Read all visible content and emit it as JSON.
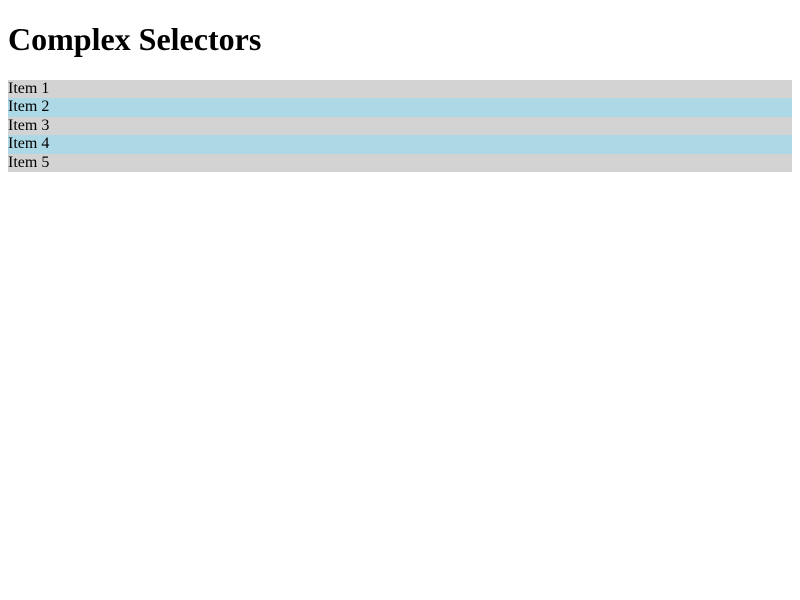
{
  "page": {
    "title": "Complex Selectors"
  },
  "list": {
    "items": [
      {
        "label": "Item 1"
      },
      {
        "label": "Item 2"
      },
      {
        "label": "Item 3"
      },
      {
        "label": "Item 4"
      },
      {
        "label": "Item 5"
      }
    ]
  },
  "colors": {
    "odd_row": "#d3d3d3",
    "even_row": "#add8e6",
    "text": "#000000",
    "background": "#ffffff"
  }
}
